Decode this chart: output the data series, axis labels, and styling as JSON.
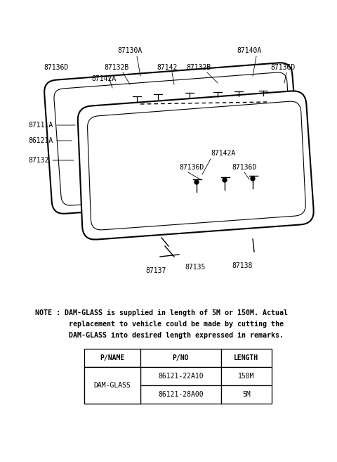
{
  "bg_color": "#ffffff",
  "fig_width": 4.8,
  "fig_height": 6.57,
  "dpi": 100,
  "note_line1": "NOTE : DAM-GLASS is supplied in length of 5M or 150M. Actual",
  "note_line2": "        replacement to vehicle could be made by cutting the",
  "note_line3": "        DAM-GLASS into desired length expressed in remarks.",
  "table_headers": [
    "P/NAME",
    "P/NO",
    "LENGTH"
  ],
  "table_row1": [
    "DAM-GLASS",
    "86121-22A10",
    "150M"
  ],
  "table_row2": [
    "",
    "86121-28A00",
    "5M"
  ]
}
